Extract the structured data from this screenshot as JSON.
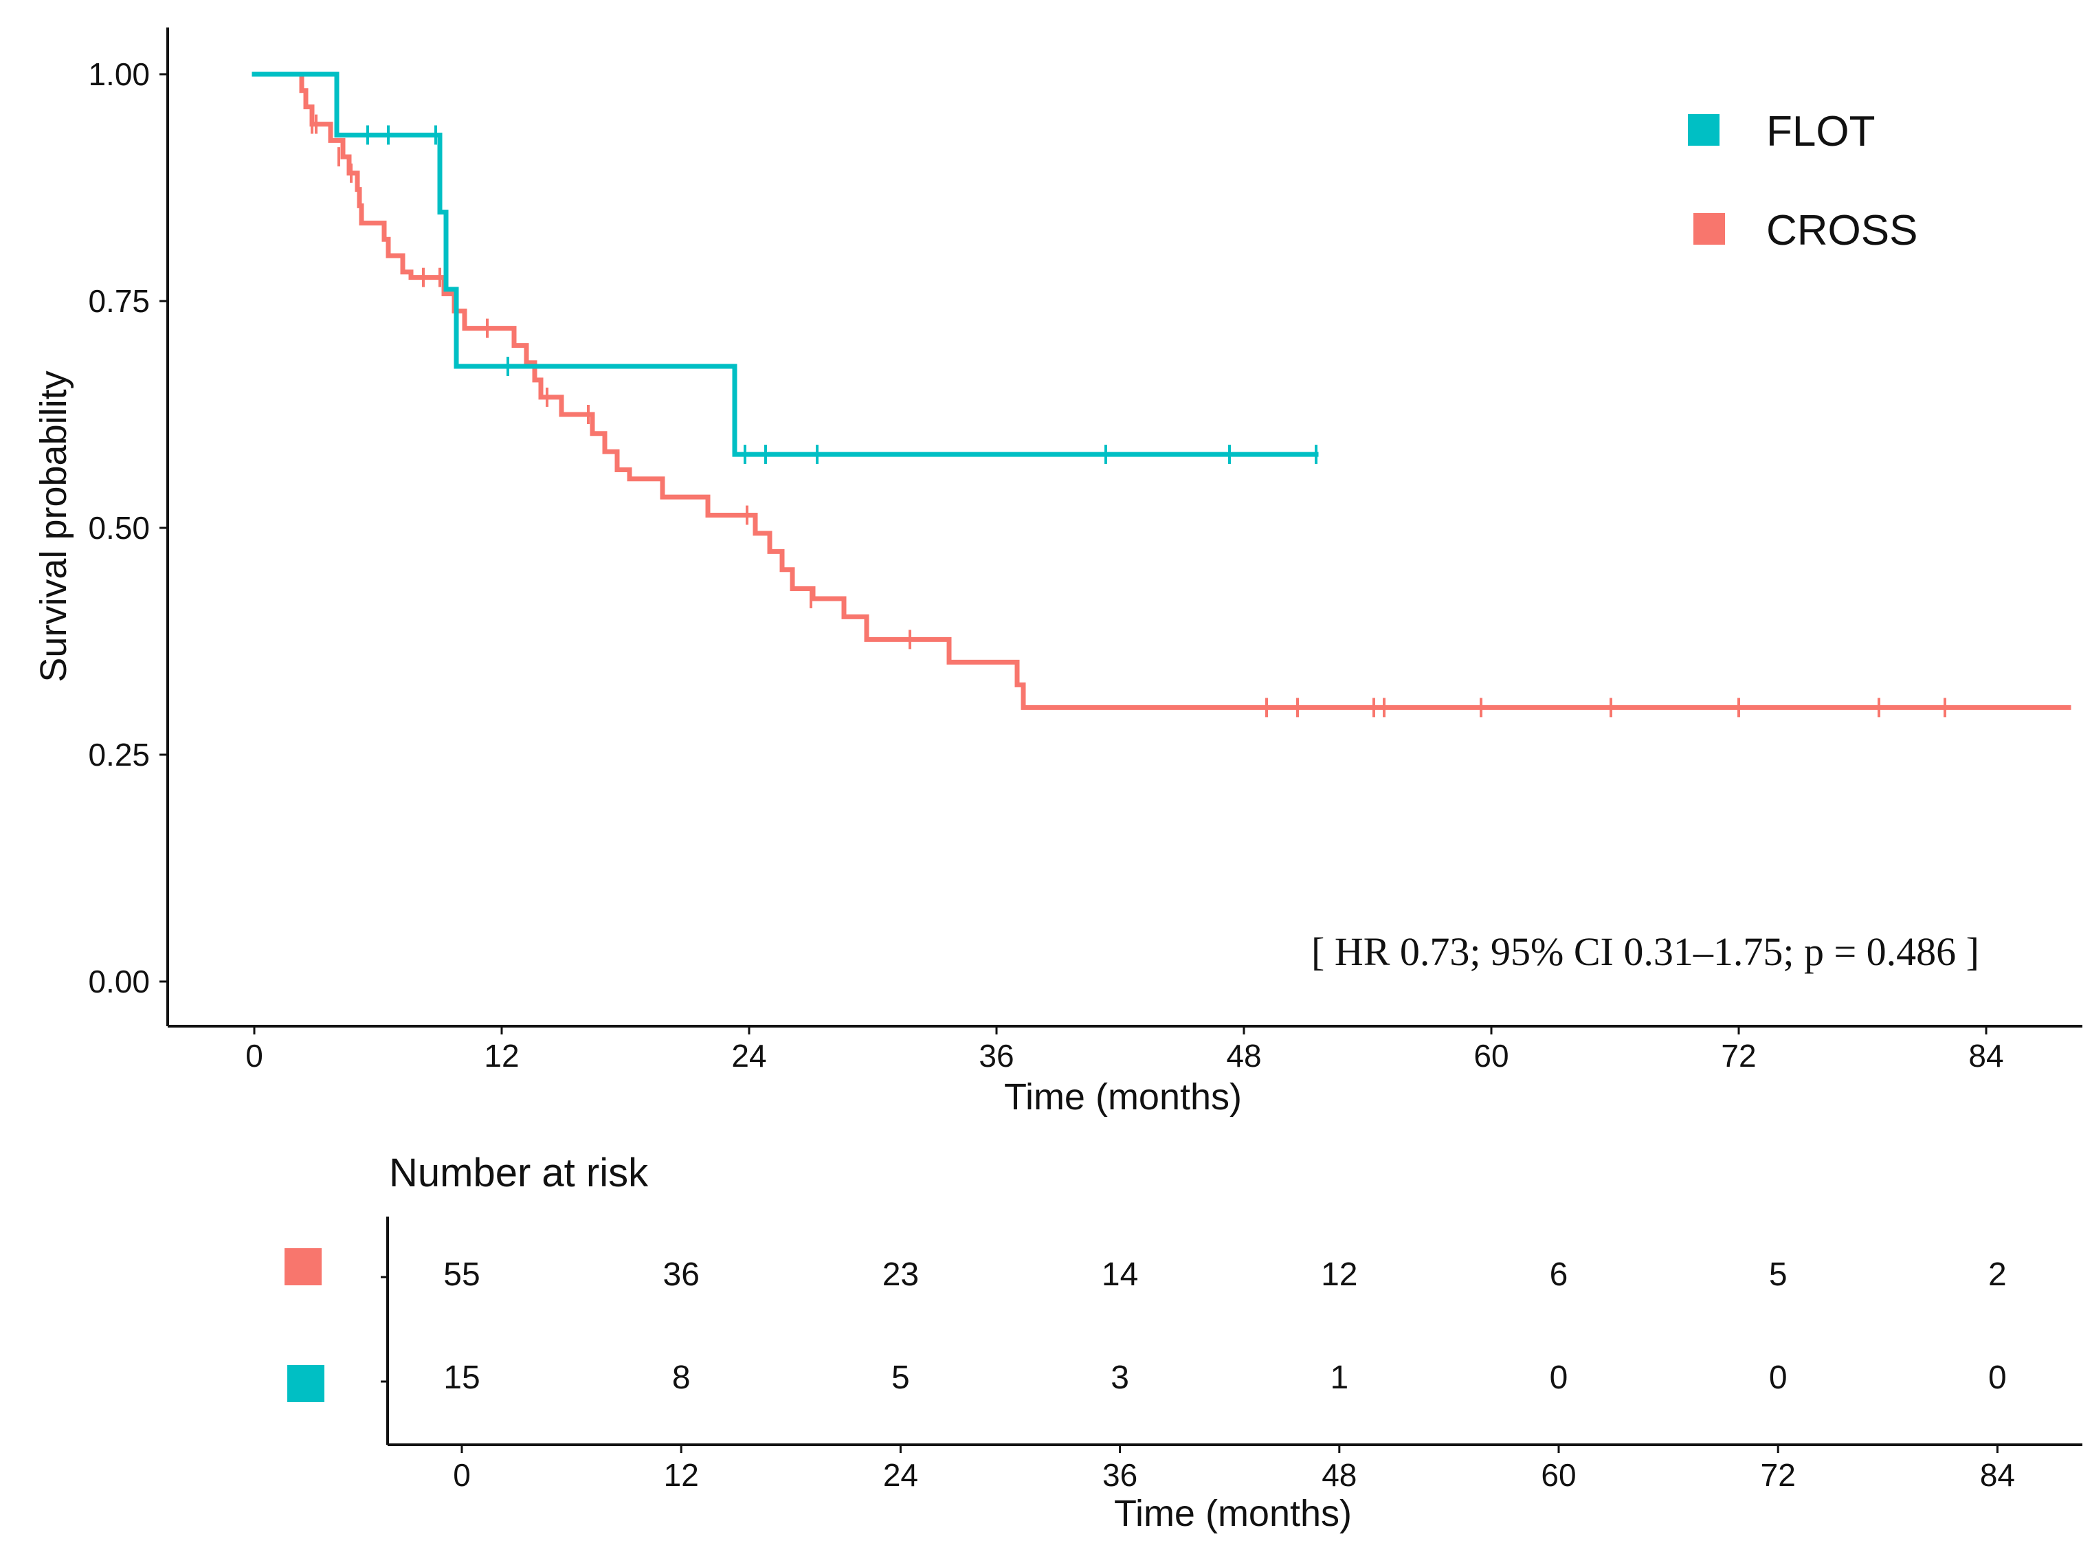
{
  "chart_data": {
    "type": "line",
    "subtype": "kaplan-meier survival curve",
    "xlabel": "Time (months)",
    "ylabel": "Survival probability",
    "xlim": [
      -5,
      88
    ],
    "ylim": [
      -0.05,
      1.05
    ],
    "x_ticks": [
      0,
      12,
      24,
      36,
      48,
      60,
      72,
      84
    ],
    "y_ticks": [
      "0.00",
      "0.25",
      "0.50",
      "0.75",
      "1.00"
    ],
    "grid": false,
    "legend_position": "top-right",
    "annotation": {
      "prefix": "[ HR 0.73; 95% CI 0.31–1.75; ",
      "italic": "p",
      "suffix": " = 0.486 ]"
    },
    "series": [
      {
        "name": "FLOT",
        "color": "#00BFC4",
        "steps": [
          [
            0,
            1.0
          ],
          [
            4.0,
            0.933
          ],
          [
            9.0,
            0.848
          ],
          [
            9.3,
            0.763
          ],
          [
            9.8,
            0.678
          ],
          [
            23.3,
            0.581
          ],
          [
            51.5,
            0.581
          ]
        ],
        "censored": [
          [
            5.5,
            0.933
          ],
          [
            6.5,
            0.933
          ],
          [
            8.8,
            0.933
          ],
          [
            12.3,
            0.678
          ],
          [
            23.8,
            0.581
          ],
          [
            24.8,
            0.581
          ],
          [
            27.3,
            0.581
          ],
          [
            41.3,
            0.581
          ],
          [
            47.3,
            0.581
          ],
          [
            51.5,
            0.581
          ]
        ]
      },
      {
        "name": "CROSS",
        "color": "#F8766D",
        "steps": [
          [
            0,
            1.0
          ],
          [
            2.3,
            0.982
          ],
          [
            2.5,
            0.964
          ],
          [
            2.8,
            0.945
          ],
          [
            3.7,
            0.927
          ],
          [
            4.3,
            0.909
          ],
          [
            4.6,
            0.891
          ],
          [
            5.0,
            0.873
          ],
          [
            5.1,
            0.855
          ],
          [
            5.2,
            0.836
          ],
          [
            6.3,
            0.818
          ],
          [
            6.5,
            0.8
          ],
          [
            7.2,
            0.782
          ],
          [
            7.6,
            0.776
          ],
          [
            9.2,
            0.758
          ],
          [
            9.7,
            0.739
          ],
          [
            10.2,
            0.72
          ],
          [
            12.6,
            0.701
          ],
          [
            13.2,
            0.682
          ],
          [
            13.6,
            0.663
          ],
          [
            13.9,
            0.644
          ],
          [
            14.9,
            0.625
          ],
          [
            16.4,
            0.604
          ],
          [
            17.0,
            0.584
          ],
          [
            17.6,
            0.564
          ],
          [
            18.2,
            0.554
          ],
          [
            19.8,
            0.534
          ],
          [
            22.0,
            0.514
          ],
          [
            24.3,
            0.494
          ],
          [
            25.0,
            0.474
          ],
          [
            25.6,
            0.454
          ],
          [
            26.1,
            0.433
          ],
          [
            27.1,
            0.422
          ],
          [
            28.6,
            0.402
          ],
          [
            29.7,
            0.377
          ],
          [
            33.7,
            0.352
          ],
          [
            37.0,
            0.327
          ],
          [
            37.3,
            0.302
          ],
          [
            88,
            0.302
          ]
        ],
        "censored": [
          [
            2.8,
            0.945
          ],
          [
            3.0,
            0.945
          ],
          [
            4.1,
            0.909
          ],
          [
            4.7,
            0.891
          ],
          [
            8.2,
            0.776
          ],
          [
            9.0,
            0.776
          ],
          [
            11.3,
            0.72
          ],
          [
            14.2,
            0.644
          ],
          [
            16.2,
            0.625
          ],
          [
            23.9,
            0.514
          ],
          [
            27.0,
            0.422
          ],
          [
            31.8,
            0.377
          ],
          [
            49.1,
            0.302
          ],
          [
            50.6,
            0.302
          ],
          [
            54.3,
            0.302
          ],
          [
            54.8,
            0.302
          ],
          [
            59.5,
            0.302
          ],
          [
            65.8,
            0.302
          ],
          [
            72.0,
            0.302
          ],
          [
            78.8,
            0.302
          ],
          [
            82.0,
            0.302
          ]
        ]
      }
    ],
    "risk_table": {
      "title": "Number at risk",
      "xlabel": "Time (months)",
      "x_ticks": [
        0,
        12,
        24,
        36,
        48,
        60,
        72,
        84
      ],
      "rows": [
        {
          "series": "CROSS",
          "color": "#F8766D",
          "values": [
            "55",
            "36",
            "23",
            "14",
            "12",
            "6",
            "5",
            "2"
          ]
        },
        {
          "series": "FLOT",
          "color": "#00BFC4",
          "values": [
            "15",
            "8",
            "5",
            "3",
            "1",
            "0",
            "0",
            "0"
          ]
        }
      ]
    }
  }
}
